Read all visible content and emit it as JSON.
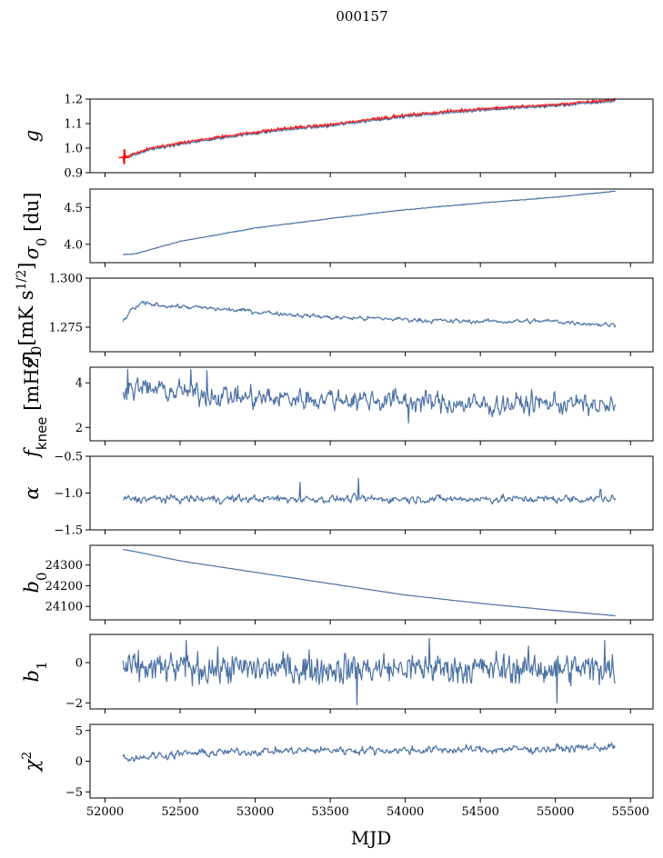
{
  "chart_data": {
    "title": "000157",
    "xlabel": "MJD",
    "xlim": [
      51900,
      55650
    ],
    "xticks": [
      52000,
      52500,
      53000,
      53500,
      54000,
      54500,
      55000,
      55500
    ],
    "x_start": 52120,
    "x_end": 55400,
    "series_color": "#4c72a4",
    "highlight_color": "#ff0000",
    "panels": [
      {
        "type": "line",
        "key": "g",
        "ylabel": "g",
        "ylim": [
          0.9,
          1.2
        ],
        "yticks": [
          0.9,
          1.0,
          1.1,
          1.2
        ],
        "tick_labels": [
          "0.9",
          "1.0",
          "1.1",
          "1.2"
        ],
        "trend_x": [
          52120,
          52150,
          52300,
          52600,
          52900,
          53200,
          53500,
          53800,
          54000,
          54200,
          54500,
          54800,
          55000,
          55200,
          55400
        ],
        "trend_y": [
          0.96,
          0.962,
          0.995,
          1.025,
          1.052,
          1.075,
          1.09,
          1.115,
          1.128,
          1.14,
          1.155,
          1.165,
          1.172,
          1.182,
          1.192
        ],
        "noise": 0.004,
        "smooth": 0,
        "spikes": [
          {
            "x": 52125,
            "y": 0.94
          },
          {
            "x": 52130,
            "y": 0.99
          }
        ],
        "overlay": "fit"
      },
      {
        "type": "line",
        "key": "sigma0_du",
        "ylabel": "σ0 [du]",
        "ylim": [
          3.75,
          4.75
        ],
        "yticks": [
          4.0,
          4.5
        ],
        "tick_labels": [
          "4.0",
          "4.5"
        ],
        "trend_x": [
          52120,
          52200,
          52500,
          53000,
          53500,
          54000,
          54500,
          55000,
          55400
        ],
        "trend_y": [
          3.86,
          3.87,
          4.04,
          4.22,
          4.35,
          4.47,
          4.56,
          4.64,
          4.72
        ],
        "noise": 0.004,
        "smooth": 0,
        "spikes": []
      },
      {
        "type": "line",
        "key": "sigma0_mk",
        "ylabel": "σ0[mK s1/2]",
        "ylim": [
          1.2625,
          1.3
        ],
        "yticks": [
          1.275,
          1.3
        ],
        "tick_labels": [
          "1.275",
          "1.300"
        ],
        "trend_x": [
          52120,
          52180,
          52250,
          52600,
          53000,
          53500,
          54000,
          54300,
          55000,
          55200,
          55400
        ],
        "trend_y": [
          1.278,
          1.284,
          1.287,
          1.285,
          1.283,
          1.28,
          1.279,
          1.278,
          1.278,
          1.277,
          1.276
        ],
        "noise": 0.0011,
        "smooth": 0.6,
        "spikes": []
      },
      {
        "type": "line",
        "key": "fknee",
        "ylabel": "fknee [mHz]",
        "ylim": [
          1.4,
          4.7
        ],
        "yticks": [
          2,
          4
        ],
        "tick_labels": [
          "2",
          "4"
        ],
        "trend_x": [
          52120,
          52500,
          53000,
          53500,
          54000,
          54500,
          55000,
          55400
        ],
        "trend_y": [
          3.8,
          3.6,
          3.3,
          3.3,
          3.2,
          3.0,
          3.1,
          2.9
        ],
        "noise": 0.38,
        "smooth": 0.5,
        "spikes": [
          {
            "x": 52150,
            "y": 4.6
          },
          {
            "x": 52570,
            "y": 4.6
          },
          {
            "x": 52680,
            "y": 4.55
          },
          {
            "x": 54020,
            "y": 2.2
          }
        ]
      },
      {
        "type": "line",
        "key": "alpha",
        "ylabel": "α",
        "ylim": [
          -1.5,
          -0.5
        ],
        "yticks": [
          -1.5,
          -1.0,
          -0.5
        ],
        "tick_labels": [
          "−1.5",
          "−1.0",
          "−0.5"
        ],
        "trend_x": [
          52120,
          55400
        ],
        "trend_y": [
          -1.08,
          -1.08
        ],
        "noise": 0.04,
        "smooth": 0.5,
        "spikes": [
          {
            "x": 53300,
            "y": -0.85
          },
          {
            "x": 53690,
            "y": -0.8
          },
          {
            "x": 55300,
            "y": -0.95
          }
        ]
      },
      {
        "type": "line",
        "key": "b0",
        "ylabel": "b0",
        "ylim": [
          24035,
          24395
        ],
        "yticks": [
          24100,
          24200,
          24300
        ],
        "tick_labels": [
          "24100",
          "24200",
          "24300"
        ],
        "trend_x": [
          52120,
          52200,
          52500,
          53000,
          53500,
          54000,
          54500,
          55000,
          55400
        ],
        "trend_y": [
          24375,
          24365,
          24320,
          24265,
          24210,
          24155,
          24115,
          24080,
          24055
        ],
        "noise": 0.5,
        "smooth": 0,
        "spikes": []
      },
      {
        "type": "line",
        "key": "b1",
        "ylabel": "b1",
        "ylim": [
          -2.3,
          1.4
        ],
        "yticks": [
          -2,
          0
        ],
        "tick_labels": [
          "−2",
          "0"
        ],
        "trend_x": [
          52120,
          55400
        ],
        "trend_y": [
          -0.3,
          -0.3
        ],
        "noise": 0.45,
        "smooth": 0.3,
        "spikes": [
          {
            "x": 53680,
            "y": -2.1
          },
          {
            "x": 55010,
            "y": -2.0
          },
          {
            "x": 52540,
            "y": 1.1
          },
          {
            "x": 54160,
            "y": 1.2
          },
          {
            "x": 55330,
            "y": 1.1
          }
        ]
      },
      {
        "type": "line",
        "key": "chi2",
        "ylabel": "χ2",
        "ylim": [
          -6,
          6
        ],
        "yticks": [
          -5,
          0,
          5
        ],
        "tick_labels": [
          "−5",
          "0",
          "5"
        ],
        "trend_x": [
          52120,
          52500,
          53000,
          53500,
          54000,
          54500,
          55000,
          55400
        ],
        "trend_y": [
          0.5,
          1.2,
          1.6,
          1.8,
          1.8,
          1.9,
          2.0,
          2.4
        ],
        "noise": 0.55,
        "smooth": 0.55,
        "spikes": []
      }
    ]
  }
}
